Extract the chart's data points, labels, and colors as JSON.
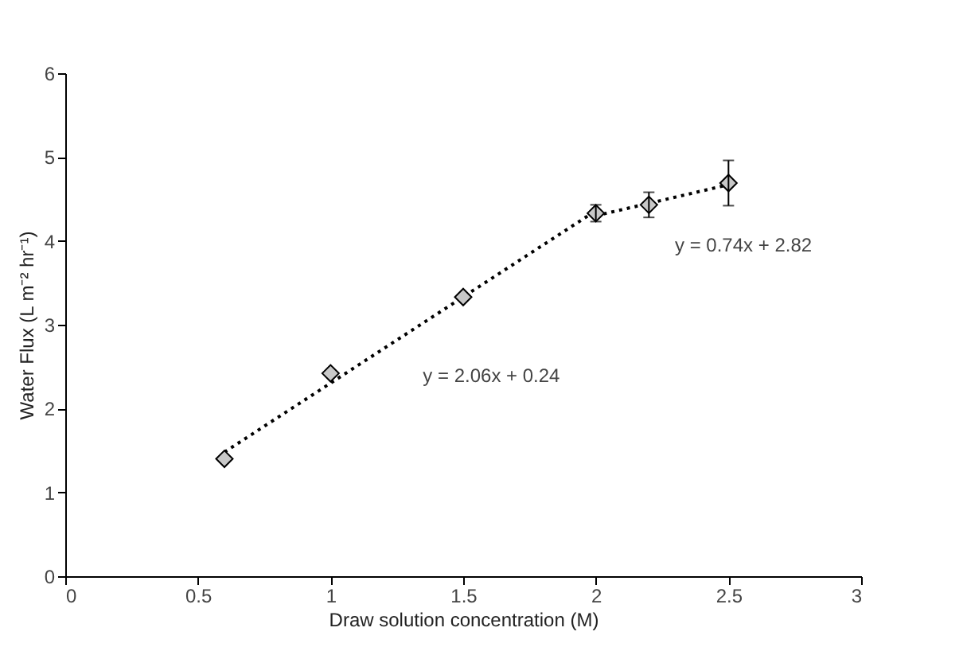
{
  "chart_data": {
    "type": "scatter",
    "xlabel": "Draw solution concentration (M)",
    "ylabel": "Water Flux (L m⁻² hr⁻¹)",
    "xlim": [
      0,
      3
    ],
    "xticks": [
      0,
      0.5,
      1,
      1.5,
      2,
      2.5,
      3
    ],
    "ylim": [
      0,
      6
    ],
    "yticks": [
      0,
      1,
      2,
      3,
      4,
      5,
      6
    ],
    "grid": false,
    "series": [
      {
        "color": "#c8c8c8",
        "marker": "diamond",
        "x": [
          0.6,
          1,
          1.5,
          2,
          2.2,
          2.5
        ],
        "values": [
          1.4,
          2.42,
          3.33,
          4.33,
          4.43,
          4.69
        ],
        "errors": [
          null,
          null,
          null,
          0.1,
          0.15,
          0.27
        ]
      },
      {
        "type": "line",
        "color": "#000000",
        "line_style": "dotted",
        "x": [
          0.6,
          2
        ],
        "values": [
          1.48,
          4.36
        ]
      },
      {
        "type": "line",
        "color": "#000000",
        "line_style": "dotted",
        "x": [
          2,
          2.5
        ],
        "values": [
          4.3,
          4.67
        ]
      }
    ],
    "annotations": [
      "y = 2.06x + 0.24",
      "y = 0.74x + 2.82"
    ]
  }
}
